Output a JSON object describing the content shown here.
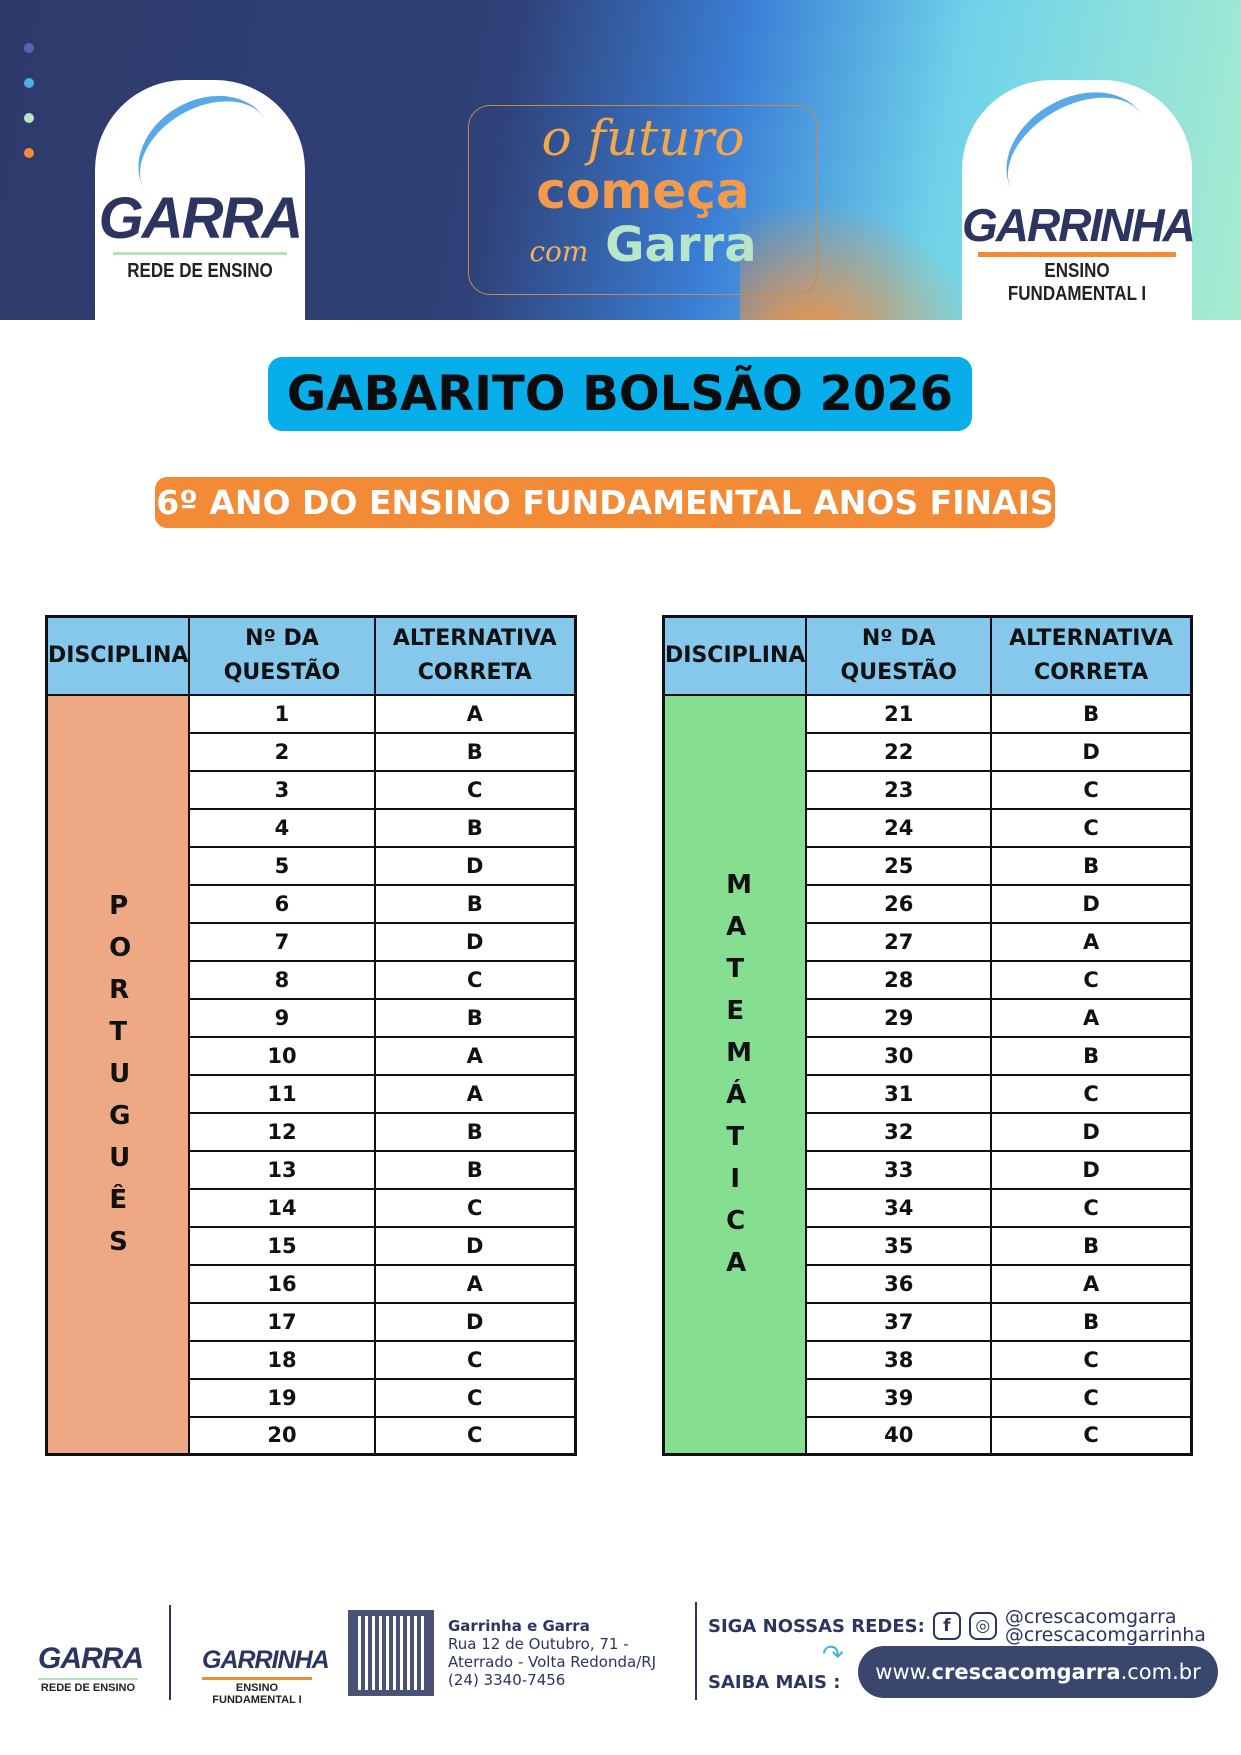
{
  "header": {
    "logo_left": {
      "name": "GARRA",
      "subtitle": "REDE DE ENSINO"
    },
    "slogan": {
      "line1": "o futuro",
      "line2": "começa",
      "line3_small": "com",
      "line3": "Garra"
    },
    "logo_right": {
      "name": "GARRINHA",
      "subtitle": "ENSINO FUNDAMENTAL I"
    },
    "colors": {
      "navy": "#2e3a6b",
      "cyan": "#6fd2ea",
      "orange": "#f28a36",
      "green": "#a8ecd0"
    }
  },
  "title": "GABARITO BOLSÃO 2026",
  "subtitle": "6º ANO DO ENSINO FUNDAMENTAL ANOS FINAIS",
  "table_headers": {
    "discipline": "DISCIPLINA",
    "question_line1": "Nº DA",
    "question_line2": "QUESTÃO",
    "answer_line1": "ALTERNATIVA",
    "answer_line2": "CORRETA"
  },
  "tables": [
    {
      "discipline": "PORTUGUÊS",
      "color": "#eea883",
      "rows": [
        {
          "q": "1",
          "a": "A"
        },
        {
          "q": "2",
          "a": "B"
        },
        {
          "q": "3",
          "a": "C"
        },
        {
          "q": "4",
          "a": "B"
        },
        {
          "q": "5",
          "a": "D"
        },
        {
          "q": "6",
          "a": "B"
        },
        {
          "q": "7",
          "a": "D"
        },
        {
          "q": "8",
          "a": "C"
        },
        {
          "q": "9",
          "a": "B"
        },
        {
          "q": "10",
          "a": "A"
        },
        {
          "q": "11",
          "a": "A"
        },
        {
          "q": "12",
          "a": "B"
        },
        {
          "q": "13",
          "a": "B"
        },
        {
          "q": "14",
          "a": "C"
        },
        {
          "q": "15",
          "a": "D"
        },
        {
          "q": "16",
          "a": "A"
        },
        {
          "q": "17",
          "a": "D"
        },
        {
          "q": "18",
          "a": "C"
        },
        {
          "q": "19",
          "a": "C"
        },
        {
          "q": "20",
          "a": "C"
        }
      ]
    },
    {
      "discipline": "MATEMÁTICA",
      "color": "#86de90",
      "rows": [
        {
          "q": "21",
          "a": "B"
        },
        {
          "q": "22",
          "a": "D"
        },
        {
          "q": "23",
          "a": "C"
        },
        {
          "q": "24",
          "a": "C"
        },
        {
          "q": "25",
          "a": "B"
        },
        {
          "q": "26",
          "a": "D"
        },
        {
          "q": "27",
          "a": "A"
        },
        {
          "q": "28",
          "a": "C"
        },
        {
          "q": "29",
          "a": "A"
        },
        {
          "q": "30",
          "a": "B"
        },
        {
          "q": "31",
          "a": "C"
        },
        {
          "q": "32",
          "a": "D"
        },
        {
          "q": "33",
          "a": "D"
        },
        {
          "q": "34",
          "a": "C"
        },
        {
          "q": "35",
          "a": "B"
        },
        {
          "q": "36",
          "a": "A"
        },
        {
          "q": "37",
          "a": "B"
        },
        {
          "q": "38",
          "a": "C"
        },
        {
          "q": "39",
          "a": "C"
        },
        {
          "q": "40",
          "a": "C"
        }
      ]
    }
  ],
  "footer": {
    "logo_left": {
      "name": "GARRA",
      "subtitle": "REDE DE ENSINO"
    },
    "logo_right": {
      "name": "GARRINHA",
      "subtitle": "ENSINO FUNDAMENTAL I"
    },
    "address": {
      "name": "Garrinha e Garra",
      "line1": "Rua 12 de Outubro, 71 -",
      "line2": "Aterrado - Volta Redonda/RJ",
      "phone": "(24) 3340-7456"
    },
    "social_label": "SIGA NOSSAS REDES:",
    "handles": [
      "@crescacomgarra",
      "@crescacomgarrinha"
    ],
    "more_label": "SAIBA MAIS :",
    "url": {
      "prefix": "www.",
      "bold": "crescacomgarra",
      "suffix": ".com.br"
    }
  }
}
